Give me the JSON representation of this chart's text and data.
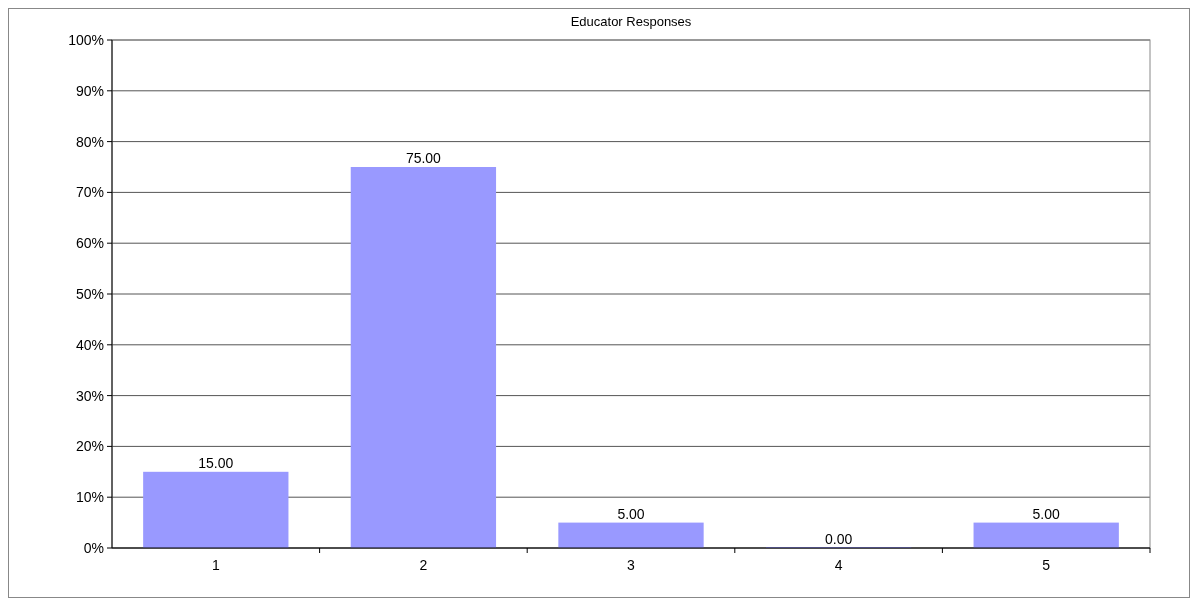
{
  "chart_data": {
    "type": "bar",
    "title": "Educator Responses",
    "categories": [
      "1",
      "2",
      "3",
      "4",
      "5"
    ],
    "values": [
      15,
      75,
      5,
      0,
      5
    ],
    "value_labels": [
      "15.00",
      "75.00",
      "5.00",
      "0.00",
      "5.00"
    ],
    "color": "#9999ff",
    "ylim": [
      0,
      100
    ],
    "yticks": [
      {
        "value": 0,
        "label": "0%"
      },
      {
        "value": 10,
        "label": "10%"
      },
      {
        "value": 20,
        "label": "20%"
      },
      {
        "value": 30,
        "label": "30%"
      },
      {
        "value": 40,
        "label": "40%"
      },
      {
        "value": 50,
        "label": "50%"
      },
      {
        "value": 60,
        "label": "60%"
      },
      {
        "value": 70,
        "label": "70%"
      },
      {
        "value": 80,
        "label": "80%"
      },
      {
        "value": 90,
        "label": "90%"
      },
      {
        "value": 100,
        "label": "100%"
      }
    ],
    "grid": "y"
  }
}
